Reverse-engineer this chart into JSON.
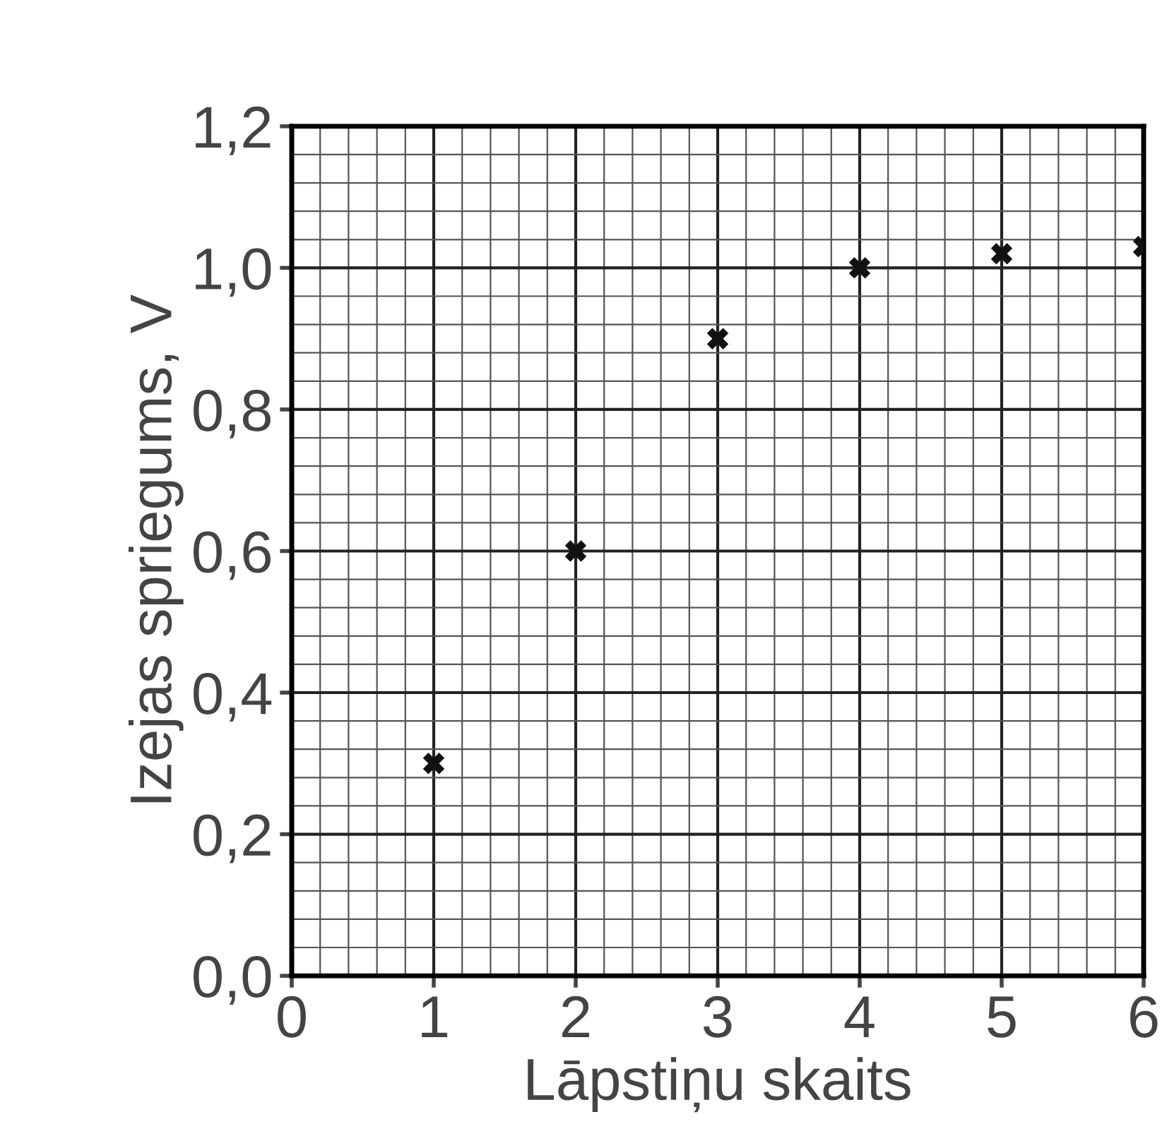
{
  "chart_data": {
    "type": "scatter",
    "xlabel": "Lāpstiņu skaits",
    "ylabel": "Izejas spriegums, V",
    "x": [
      1,
      2,
      3,
      4,
      5,
      6
    ],
    "values": [
      0.3,
      0.6,
      0.9,
      1.0,
      1.02,
      1.03
    ],
    "color": "#111111",
    "marker": "cross",
    "xlim": [
      0,
      6
    ],
    "xticks": [
      0,
      1,
      2,
      3,
      4,
      5,
      6
    ],
    "ylim": [
      0,
      1.2
    ],
    "yticks": [
      {
        "value": 0,
        "label": "0,0"
      },
      {
        "value": 0.2,
        "label": "0,2"
      },
      {
        "value": 0.4,
        "label": "0,4"
      },
      {
        "value": 0.6,
        "label": "0,6"
      },
      {
        "value": 0.8,
        "label": "0,8"
      },
      {
        "value": 1.0,
        "label": "1,0"
      },
      {
        "value": 1.2,
        "label": "1,2"
      }
    ],
    "grid": true
  }
}
